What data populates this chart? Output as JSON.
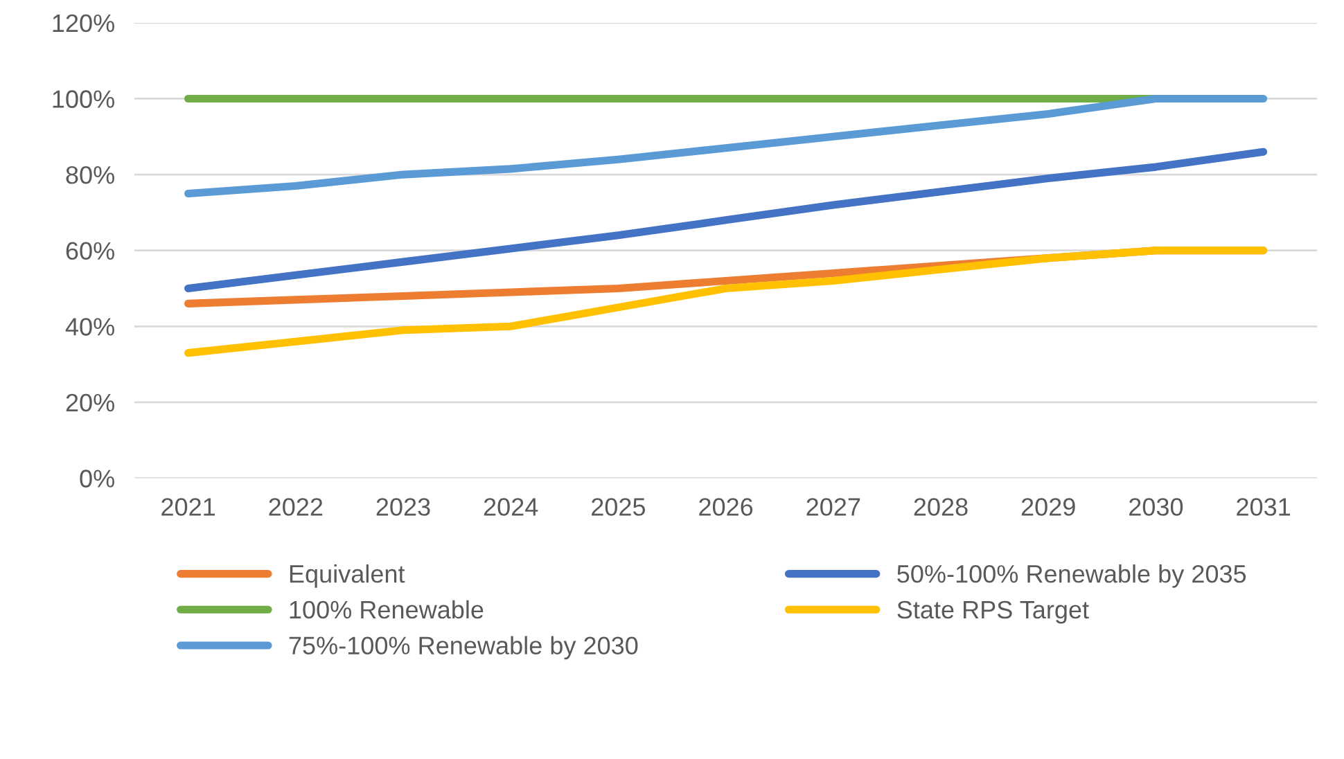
{
  "chart_data": {
    "type": "line",
    "categories": [
      "2021",
      "2022",
      "2023",
      "2024",
      "2025",
      "2026",
      "2027",
      "2028",
      "2029",
      "2030",
      "2031"
    ],
    "series": [
      {
        "name": "Equivalent",
        "color": "#ed7d31",
        "values": [
          46,
          47,
          48,
          49,
          50,
          52,
          54,
          56,
          58,
          60,
          60
        ]
      },
      {
        "name": "50%-100% Renewable by 2035",
        "color": "#4472c4",
        "values": [
          50,
          53.5,
          57,
          60.5,
          64,
          68,
          72,
          75.5,
          79,
          82,
          86
        ]
      },
      {
        "name": "100% Renewable",
        "color": "#70ad47",
        "values": [
          100,
          100,
          100,
          100,
          100,
          100,
          100,
          100,
          100,
          100,
          null
        ]
      },
      {
        "name": "State RPS Target",
        "color": "#ffc000",
        "values": [
          33,
          36,
          39,
          40,
          45,
          50,
          52,
          55,
          58,
          60,
          60
        ]
      },
      {
        "name": "75%-100% Renewable by 2030",
        "color": "#5b9bd5",
        "values": [
          75,
          77,
          80,
          81.5,
          84,
          87,
          90,
          93,
          96,
          100,
          100
        ]
      }
    ],
    "ylim": [
      0,
      120
    ],
    "yticks": [
      {
        "value": 0,
        "label": "0%"
      },
      {
        "value": 20,
        "label": "20%"
      },
      {
        "value": 40,
        "label": "40%"
      },
      {
        "value": 60,
        "label": "60%"
      },
      {
        "value": 80,
        "label": "80%"
      },
      {
        "value": 100,
        "label": "100%"
      },
      {
        "value": 120,
        "label": "120%"
      }
    ],
    "grid": "y",
    "legend": "bottom",
    "marker": "none",
    "line_style": "solid"
  }
}
